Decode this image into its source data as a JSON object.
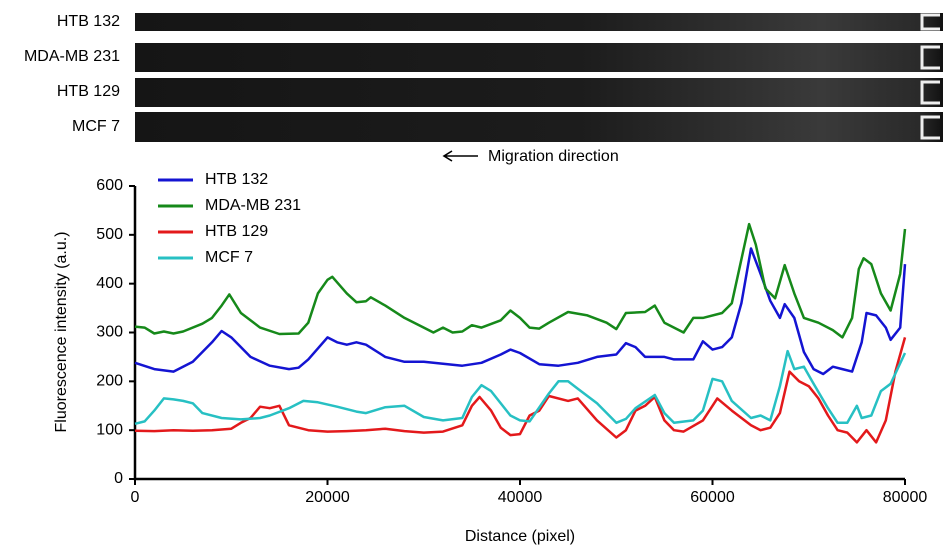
{
  "image_labels": [
    "HTB 132",
    "MDA-MB 231",
    "HTB 129",
    "MCF 7"
  ],
  "chart_data": {
    "type": "line",
    "annotation": "Migration direction",
    "x_label": "Distance (pixel)",
    "y_label": "Fluorescence intensity (a.u.)",
    "xlim": [
      0,
      80000
    ],
    "ylim": [
      0,
      600
    ],
    "xticks": [
      0,
      20000,
      40000,
      60000,
      80000
    ],
    "yticks": [
      0,
      100,
      200,
      300,
      400,
      500,
      600
    ],
    "legend": "upper left",
    "series": [
      {
        "name": "HTB 132",
        "color": "#1414d2",
        "x": [
          0,
          2000,
          4000,
          6000,
          8000,
          9000,
          10000,
          12000,
          14000,
          16000,
          17000,
          18000,
          20000,
          21000,
          22000,
          23000,
          24000,
          26000,
          28000,
          30000,
          32000,
          34000,
          36000,
          38000,
          39000,
          40000,
          42000,
          44000,
          46000,
          48000,
          50000,
          51000,
          52000,
          53000,
          55000,
          56000,
          58000,
          59000,
          60000,
          61000,
          62000,
          63000,
          64000,
          65000,
          66000,
          67000,
          67500,
          68500,
          69500,
          70500,
          71500,
          72500,
          73500,
          74500,
          75500,
          76000,
          77000,
          78000,
          78500,
          79500,
          80000
        ],
        "values": [
          238,
          225,
          220,
          240,
          280,
          303,
          290,
          250,
          232,
          225,
          228,
          245,
          290,
          280,
          275,
          280,
          275,
          250,
          240,
          240,
          236,
          232,
          238,
          255,
          265,
          258,
          235,
          232,
          238,
          250,
          255,
          278,
          270,
          250,
          250,
          245,
          245,
          282,
          265,
          270,
          290,
          360,
          472,
          420,
          365,
          330,
          358,
          330,
          260,
          225,
          215,
          230,
          225,
          220,
          280,
          340,
          335,
          310,
          285,
          310,
          440
        ]
      },
      {
        "name": "MDA-MB 231",
        "color": "#16891a",
        "x": [
          0,
          1000,
          2000,
          3000,
          4000,
          5000,
          7000,
          8000,
          9000,
          9800,
          11000,
          13000,
          15000,
          17000,
          18000,
          19000,
          20000,
          20500,
          22000,
          23000,
          24000,
          24500,
          26000,
          28000,
          30000,
          31000,
          32000,
          33000,
          34000,
          35000,
          36000,
          38000,
          39000,
          40000,
          41000,
          42000,
          43000,
          45000,
          47000,
          49000,
          50000,
          51000,
          53000,
          54000,
          55000,
          57000,
          58000,
          59000,
          61000,
          62000,
          63000,
          63800,
          64500,
          65500,
          66500,
          67500,
          68500,
          69500,
          71000,
          72500,
          73500,
          74500,
          75200,
          75700,
          76500,
          77500,
          78500,
          79500,
          80000
        ],
        "values": [
          312,
          310,
          298,
          302,
          298,
          302,
          318,
          330,
          355,
          378,
          340,
          310,
          297,
          298,
          320,
          380,
          408,
          414,
          380,
          362,
          364,
          372,
          355,
          330,
          310,
          300,
          310,
          300,
          302,
          315,
          310,
          325,
          345,
          330,
          310,
          308,
          320,
          342,
          335,
          320,
          307,
          340,
          342,
          355,
          320,
          300,
          330,
          330,
          340,
          360,
          450,
          522,
          480,
          390,
          370,
          438,
          380,
          330,
          320,
          305,
          290,
          330,
          430,
          452,
          440,
          380,
          345,
          420,
          512
        ]
      },
      {
        "name": "HTB 129",
        "color": "#e3191b",
        "x": [
          0,
          2000,
          4000,
          6000,
          8000,
          10000,
          11000,
          12000,
          13000,
          14000,
          15000,
          16000,
          18000,
          20000,
          22000,
          24000,
          26000,
          28000,
          30000,
          32000,
          34000,
          35000,
          35800,
          37000,
          38000,
          39000,
          40000,
          41000,
          42000,
          43000,
          45000,
          46000,
          48000,
          50000,
          51000,
          52000,
          53000,
          54000,
          55000,
          56000,
          57000,
          59000,
          60000,
          60500,
          62000,
          64000,
          65000,
          66000,
          67000,
          68000,
          69000,
          70000,
          71000,
          72000,
          73000,
          74000,
          75000,
          76000,
          77000,
          78000,
          79000,
          80000
        ],
        "values": [
          99,
          98,
          100,
          99,
          100,
          103,
          115,
          125,
          148,
          145,
          150,
          110,
          100,
          97,
          98,
          100,
          103,
          98,
          95,
          97,
          110,
          150,
          168,
          140,
          105,
          90,
          92,
          130,
          140,
          170,
          160,
          165,
          120,
          85,
          100,
          140,
          150,
          168,
          120,
          100,
          97,
          120,
          150,
          165,
          140,
          110,
          100,
          105,
          135,
          220,
          200,
          190,
          165,
          130,
          100,
          95,
          75,
          100,
          75,
          120,
          220,
          290
        ]
      },
      {
        "name": "MCF 7",
        "color": "#27c0c3",
        "x": [
          0,
          1000,
          2000,
          3000,
          4000,
          5000,
          6000,
          7000,
          9000,
          11000,
          13000,
          14000,
          16000,
          17500,
          19000,
          21000,
          23000,
          24000,
          26000,
          28000,
          30000,
          32000,
          34000,
          35000,
          36000,
          37000,
          39000,
          40000,
          41000,
          43000,
          44000,
          45000,
          46000,
          48000,
          50000,
          51000,
          52000,
          54000,
          55000,
          56000,
          58000,
          59000,
          60000,
          61000,
          62000,
          64000,
          65000,
          66000,
          67000,
          67800,
          68500,
          69500,
          70500,
          72000,
          73000,
          74000,
          75000,
          75500,
          76500,
          77500,
          78500,
          80000
        ],
        "values": [
          113,
          118,
          140,
          165,
          163,
          160,
          155,
          135,
          125,
          122,
          125,
          130,
          145,
          160,
          157,
          148,
          138,
          135,
          147,
          150,
          127,
          120,
          125,
          168,
          192,
          180,
          130,
          120,
          118,
          175,
          200,
          200,
          185,
          155,
          115,
          123,
          145,
          172,
          135,
          115,
          120,
          140,
          205,
          200,
          160,
          125,
          130,
          120,
          190,
          262,
          225,
          230,
          195,
          145,
          115,
          115,
          150,
          125,
          130,
          180,
          195,
          258
        ]
      }
    ]
  }
}
